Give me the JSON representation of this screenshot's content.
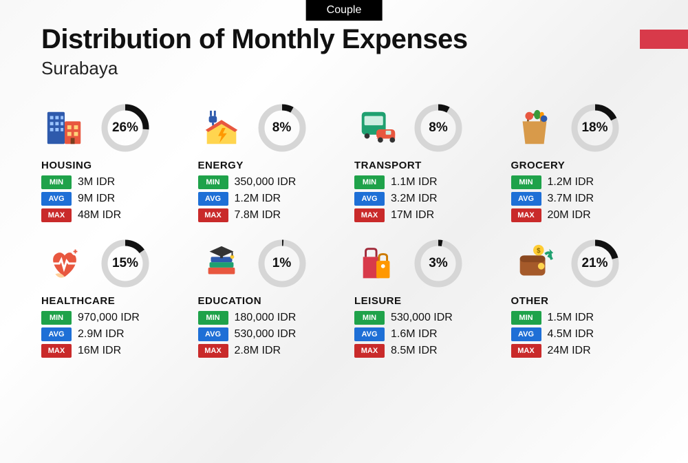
{
  "badge": "Couple",
  "title": "Distribution of Monthly Expenses",
  "subtitle": "Surabaya",
  "flag_color": "#d83a4a",
  "donut": {
    "track_color": "#d6d6d6",
    "arc_color": "#111111",
    "stroke_width": 9,
    "radius": 30
  },
  "stat_labels": {
    "min": "MIN",
    "avg": "AVG",
    "max": "MAX"
  },
  "stat_colors": {
    "min": "#1fa24a",
    "avg": "#1e6fd6",
    "max": "#c92a2a"
  },
  "categories": [
    {
      "name": "HOUSING",
      "percent": 26,
      "min": "3M IDR",
      "avg": "9M IDR",
      "max": "48M IDR",
      "icon": "housing"
    },
    {
      "name": "ENERGY",
      "percent": 8,
      "min": "350,000 IDR",
      "avg": "1.2M IDR",
      "max": "7.8M IDR",
      "icon": "energy"
    },
    {
      "name": "TRANSPORT",
      "percent": 8,
      "min": "1.1M IDR",
      "avg": "3.2M IDR",
      "max": "17M IDR",
      "icon": "transport"
    },
    {
      "name": "GROCERY",
      "percent": 18,
      "min": "1.2M IDR",
      "avg": "3.7M IDR",
      "max": "20M IDR",
      "icon": "grocery"
    },
    {
      "name": "HEALTHCARE",
      "percent": 15,
      "min": "970,000 IDR",
      "avg": "2.9M IDR",
      "max": "16M IDR",
      "icon": "healthcare"
    },
    {
      "name": "EDUCATION",
      "percent": 1,
      "min": "180,000 IDR",
      "avg": "530,000 IDR",
      "max": "2.8M IDR",
      "icon": "education"
    },
    {
      "name": "LEISURE",
      "percent": 3,
      "min": "530,000 IDR",
      "avg": "1.6M IDR",
      "max": "8.5M IDR",
      "icon": "leisure"
    },
    {
      "name": "OTHER",
      "percent": 21,
      "min": "1.5M IDR",
      "avg": "4.5M IDR",
      "max": "24M IDR",
      "icon": "other"
    }
  ]
}
